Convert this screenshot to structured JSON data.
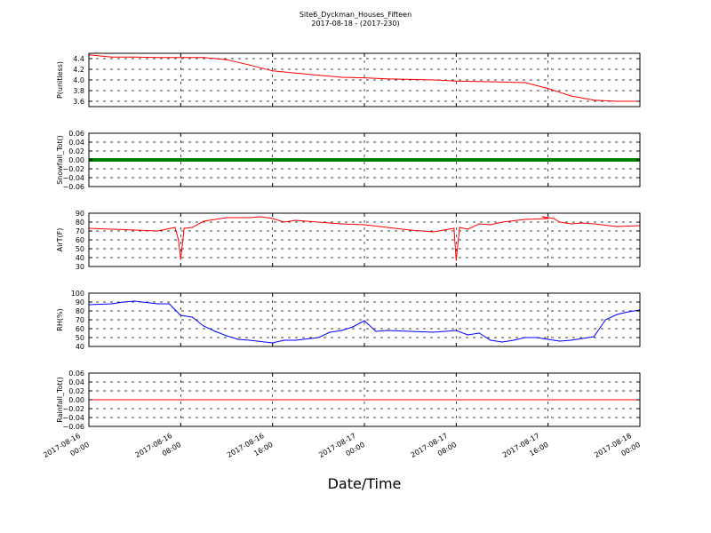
{
  "figure": {
    "title_line1": "Site6_Dyckman_Houses_Fifteen",
    "title_line2": "2017-08-18 - (2017-230)",
    "xlabel": "Date/Time"
  },
  "chart_data": [
    {
      "type": "line",
      "ylabel": "P(unitless)",
      "ylim": [
        3.5,
        4.5
      ],
      "yticks": [
        "3.6",
        "3.8",
        "4.0",
        "4.2",
        "4.4"
      ],
      "ytick_values": [
        3.6,
        3.8,
        4.0,
        4.2,
        4.4
      ],
      "color": "#ff0000",
      "grid": true,
      "x_hours": [
        0,
        2,
        4,
        6,
        8,
        10,
        12,
        14,
        16,
        18,
        20,
        22,
        24,
        26,
        28,
        30,
        32,
        34,
        36,
        38,
        40,
        42,
        44,
        46,
        48
      ],
      "values": [
        4.47,
        4.43,
        4.43,
        4.42,
        4.42,
        4.42,
        4.38,
        4.28,
        4.17,
        4.13,
        4.09,
        4.05,
        4.04,
        4.02,
        4.01,
        4.0,
        3.98,
        3.97,
        3.96,
        3.95,
        3.84,
        3.7,
        3.62,
        3.6,
        3.6
      ]
    },
    {
      "type": "line",
      "ylabel": "Snowfall_Tot()",
      "ylim": [
        -0.06,
        0.06
      ],
      "yticks": [
        "−0.06",
        "−0.04",
        "−0.02",
        "0.00",
        "0.02",
        "0.04",
        "0.06"
      ],
      "ytick_values": [
        -0.06,
        -0.04,
        -0.02,
        0.0,
        0.02,
        0.04,
        0.06
      ],
      "color": "#008000",
      "line_style": "thick",
      "grid": true,
      "x_hours": [
        0,
        48
      ],
      "values": [
        0,
        0
      ]
    },
    {
      "type": "line",
      "ylabel": "AirT(F)",
      "ylim": [
        30,
        90
      ],
      "yticks": [
        "30",
        "40",
        "50",
        "60",
        "70",
        "80",
        "90"
      ],
      "ytick_values": [
        30,
        40,
        50,
        60,
        70,
        80,
        90
      ],
      "color": "#ff0000",
      "grid": true,
      "x_hours": [
        0,
        2,
        4,
        6,
        7.5,
        7.8,
        8.0,
        8.3,
        9,
        10,
        12,
        14,
        15,
        16,
        17,
        18,
        20,
        22,
        24,
        26,
        28,
        30,
        31.8,
        32.0,
        32.3,
        33,
        34,
        35,
        36,
        38,
        40,
        39.5,
        40.5,
        41,
        42,
        43,
        44,
        46,
        48
      ],
      "values": [
        73,
        72,
        71,
        70,
        74,
        60,
        38,
        73,
        74,
        81,
        85,
        85,
        86,
        84,
        80,
        82,
        80,
        78,
        77,
        74,
        71,
        69,
        73,
        37,
        74,
        72,
        78,
        77,
        80,
        83,
        84,
        86,
        84,
        80,
        78,
        79,
        78,
        75,
        76
      ]
    },
    {
      "type": "line",
      "ylabel": "RH(%)",
      "ylim": [
        40,
        100
      ],
      "yticks": [
        "40",
        "50",
        "60",
        "70",
        "80",
        "90",
        "100"
      ],
      "ytick_values": [
        40,
        50,
        60,
        70,
        80,
        90,
        100
      ],
      "color": "#0000ff",
      "grid": true,
      "x_hours": [
        0,
        2,
        3,
        4,
        6,
        7,
        8,
        9,
        10,
        11,
        12,
        13,
        14,
        16,
        17,
        18,
        20,
        21,
        22,
        23,
        24,
        25,
        26,
        28,
        30,
        32,
        33,
        34,
        35,
        36,
        37,
        38,
        39,
        40,
        41,
        42,
        43,
        44,
        45,
        46,
        47,
        48
      ],
      "values": [
        87,
        88,
        90,
        91,
        88,
        88,
        75,
        73,
        63,
        57,
        52,
        48,
        47,
        44,
        47,
        47,
        50,
        56,
        58,
        62,
        69,
        57,
        58,
        57,
        56,
        58,
        53,
        55,
        47,
        45,
        47,
        50,
        50,
        48,
        46,
        47,
        49,
        51,
        70,
        76,
        79,
        81
      ]
    },
    {
      "type": "line",
      "ylabel": "Rainfall_Tot()",
      "ylim": [
        -0.06,
        0.06
      ],
      "yticks": [
        "−0.06",
        "−0.04",
        "−0.02",
        "0.00",
        "0.02",
        "0.04",
        "0.06"
      ],
      "ytick_values": [
        -0.06,
        -0.04,
        -0.02,
        0.0,
        0.02,
        0.04,
        0.06
      ],
      "color": "#ff0000",
      "grid": true,
      "x_hours": [
        0,
        48
      ],
      "values": [
        0,
        0
      ]
    }
  ],
  "x_axis": {
    "range_hours": [
      0,
      48
    ],
    "tick_hours": [
      0,
      8,
      16,
      24,
      32,
      40,
      48
    ],
    "tick_labels": [
      [
        "2017-08-16",
        "00:00"
      ],
      [
        "2017-08-16",
        "08:00"
      ],
      [
        "2017-08-16",
        "16:00"
      ],
      [
        "2017-08-17",
        "00:00"
      ],
      [
        "2017-08-17",
        "08:00"
      ],
      [
        "2017-08-17",
        "16:00"
      ],
      [
        "2017-08-18",
        "00:00"
      ]
    ]
  }
}
